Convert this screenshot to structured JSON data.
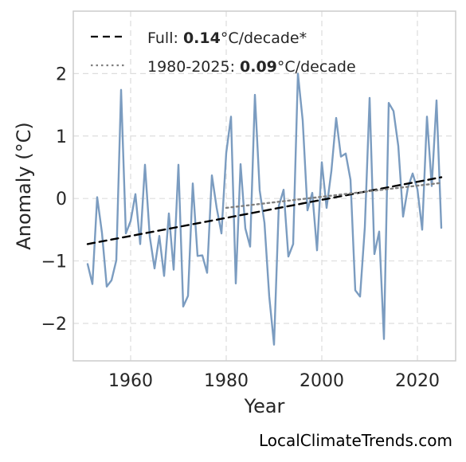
{
  "chart_data": {
    "type": "line",
    "xlabel": "Year",
    "ylabel": "Anomaly (°C)",
    "xlim": [
      1948,
      2028
    ],
    "ylim": [
      -2.6,
      3.0
    ],
    "xticks": [
      1960,
      1980,
      2000,
      2020
    ],
    "yticks": [
      -2,
      -1,
      0,
      1,
      2
    ],
    "ytick_labels": [
      "−2",
      "−1",
      "0",
      "1",
      "2"
    ],
    "grid": true,
    "legend_position": "top-left",
    "watermark": "LocalClimateTrends.com",
    "series": [
      {
        "color": "#7b9cc0",
        "x": [
          1951,
          1952,
          1953,
          1954,
          1955,
          1956,
          1957,
          1958,
          1959,
          1960,
          1961,
          1962,
          1963,
          1964,
          1965,
          1966,
          1967,
          1968,
          1969,
          1970,
          1971,
          1972,
          1973,
          1974,
          1975,
          1976,
          1977,
          1978,
          1979,
          1980,
          1981,
          1982,
          1983,
          1984,
          1985,
          1986,
          1987,
          1988,
          1989,
          1990,
          1991,
          1992,
          1993,
          1994,
          1995,
          1996,
          1997,
          1998,
          1999,
          2000,
          2001,
          2002,
          2003,
          2004,
          2005,
          2006,
          2007,
          2008,
          2009,
          2010,
          2011,
          2012,
          2013,
          2014,
          2015,
          2016,
          2017,
          2018,
          2019,
          2020,
          2021,
          2022,
          2023,
          2024,
          2025
        ],
        "y": [
          -1.05,
          -1.37,
          0.02,
          -0.55,
          -1.41,
          -1.31,
          -0.99,
          1.74,
          -0.56,
          -0.36,
          0.07,
          -0.73,
          0.54,
          -0.61,
          -1.12,
          -0.6,
          -1.24,
          -0.24,
          -1.14,
          0.54,
          -1.73,
          -1.56,
          0.24,
          -0.92,
          -0.91,
          -1.19,
          0.37,
          -0.15,
          -0.56,
          0.73,
          1.31,
          -1.36,
          0.55,
          -0.48,
          -0.77,
          1.66,
          0.13,
          -0.39,
          -1.57,
          -2.34,
          -0.12,
          0.14,
          -0.93,
          -0.73,
          2.0,
          1.25,
          -0.19,
          0.09,
          -0.83,
          0.58,
          -0.15,
          0.44,
          1.29,
          0.67,
          0.72,
          0.3,
          -1.47,
          -1.57,
          -0.46,
          1.61,
          -0.89,
          -0.53,
          -2.25,
          1.53,
          1.4,
          0.84,
          -0.29,
          0.17,
          0.4,
          0.15,
          -0.5,
          1.31,
          0.2,
          1.57,
          -0.47
        ]
      },
      {
        "name": "Full",
        "style": "dashed",
        "color": "#000000",
        "x": [
          1951,
          2025
        ],
        "y": [
          -0.73,
          0.34
        ]
      },
      {
        "name": "1980-2025",
        "style": "dotted",
        "color": "#808080",
        "x": [
          1980,
          2025
        ],
        "y": [
          -0.15,
          0.25
        ]
      }
    ],
    "legend": [
      {
        "prefix": "Full: ",
        "value": "0.14",
        "suffix": "°C/decade*"
      },
      {
        "prefix": "1980-2025: ",
        "value": "0.09",
        "suffix": "°C/decade"
      }
    ]
  }
}
